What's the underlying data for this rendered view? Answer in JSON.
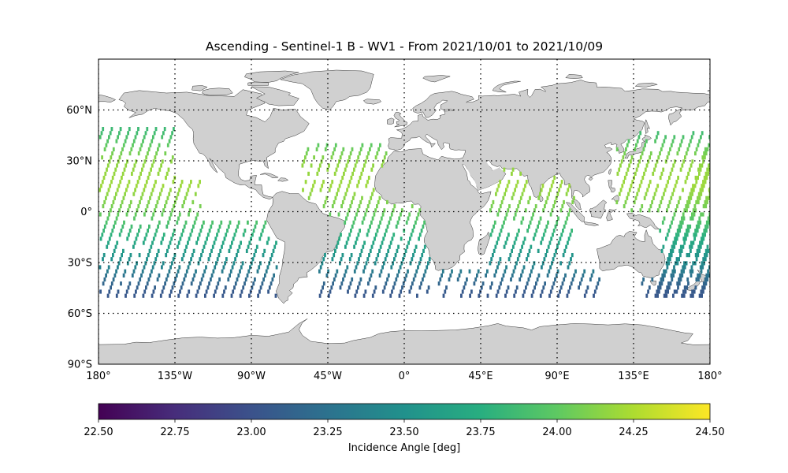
{
  "title": "Ascending - Sentinel-1 B - WV1 - From 2021/10/01 to 2021/10/09",
  "map": {
    "projection": "PlateCarree",
    "lon_range": [
      -180,
      180
    ],
    "lat_range": [
      -90,
      90
    ],
    "land_color": "#d0d0d0",
    "coast_color": "#333333",
    "grid": "dotted",
    "lat_ticks": [
      {
        "value": 60,
        "label": "60°N"
      },
      {
        "value": 30,
        "label": "30°N"
      },
      {
        "value": 0,
        "label": "0°"
      },
      {
        "value": -30,
        "label": "30°S"
      },
      {
        "value": -60,
        "label": "60°S"
      },
      {
        "value": -90,
        "label": "90°S"
      }
    ],
    "lon_ticks": [
      {
        "value": -180,
        "label": "180°"
      },
      {
        "value": -135,
        "label": "135°W"
      },
      {
        "value": -90,
        "label": "90°W"
      },
      {
        "value": -45,
        "label": "45°W"
      },
      {
        "value": 0,
        "label": "0°"
      },
      {
        "value": 45,
        "label": "45°E"
      },
      {
        "value": 90,
        "label": "90°E"
      },
      {
        "value": 135,
        "label": "135°E"
      },
      {
        "value": 180,
        "label": "180°"
      }
    ]
  },
  "colorbar": {
    "colormap": "viridis",
    "min": 22.5,
    "max": 24.5,
    "ticks": [
      "22.50",
      "22.75",
      "23.00",
      "23.25",
      "23.50",
      "23.75",
      "24.00",
      "24.25",
      "24.50"
    ],
    "label": "Incidence Angle [deg]"
  },
  "chart_data": {
    "type": "heatmap",
    "title": "Ascending - Sentinel-1 B - WV1 - From 2021/10/01 to 2021/10/09",
    "variable": "Incidence Angle [deg]",
    "value_range": [
      22.5,
      24.5
    ],
    "swath_lat_extent": [
      -52,
      50
    ],
    "swath_value_by_latitude": [
      {
        "lat": 48,
        "value": 23.85
      },
      {
        "lat": 30,
        "value": 24.15
      },
      {
        "lat": 15,
        "value": 24.2
      },
      {
        "lat": 0,
        "value": 24.05
      },
      {
        "lat": -15,
        "value": 23.75
      },
      {
        "lat": -30,
        "value": 23.45
      },
      {
        "lat": -40,
        "value": 23.2
      },
      {
        "lat": -48,
        "value": 23.05
      }
    ],
    "ocean_regions": [
      {
        "lon": [
          -180,
          -135
        ],
        "lat": [
          -50,
          50
        ]
      },
      {
        "lon": [
          -180,
          -120
        ],
        "lat": [
          -50,
          20
        ]
      },
      {
        "lon": [
          -120,
          -75
        ],
        "lat": [
          -50,
          -5
        ]
      },
      {
        "lon": [
          -60,
          -10
        ],
        "lat": [
          5,
          40
        ]
      },
      {
        "lon": [
          -50,
          15
        ],
        "lat": [
          -50,
          5
        ]
      },
      {
        "lon": [
          20,
          50
        ],
        "lat": [
          -50,
          -35
        ]
      },
      {
        "lon": [
          50,
          100
        ],
        "lat": [
          -50,
          25
        ]
      },
      {
        "lon": [
          100,
          115
        ],
        "lat": [
          -50,
          -35
        ]
      },
      {
        "lon": [
          140,
          180
        ],
        "lat": [
          -50,
          -25
        ]
      },
      {
        "lon": [
          125,
          180
        ],
        "lat": [
          0,
          48
        ]
      },
      {
        "lon": [
          150,
          180
        ],
        "lat": [
          -25,
          0
        ]
      }
    ]
  }
}
